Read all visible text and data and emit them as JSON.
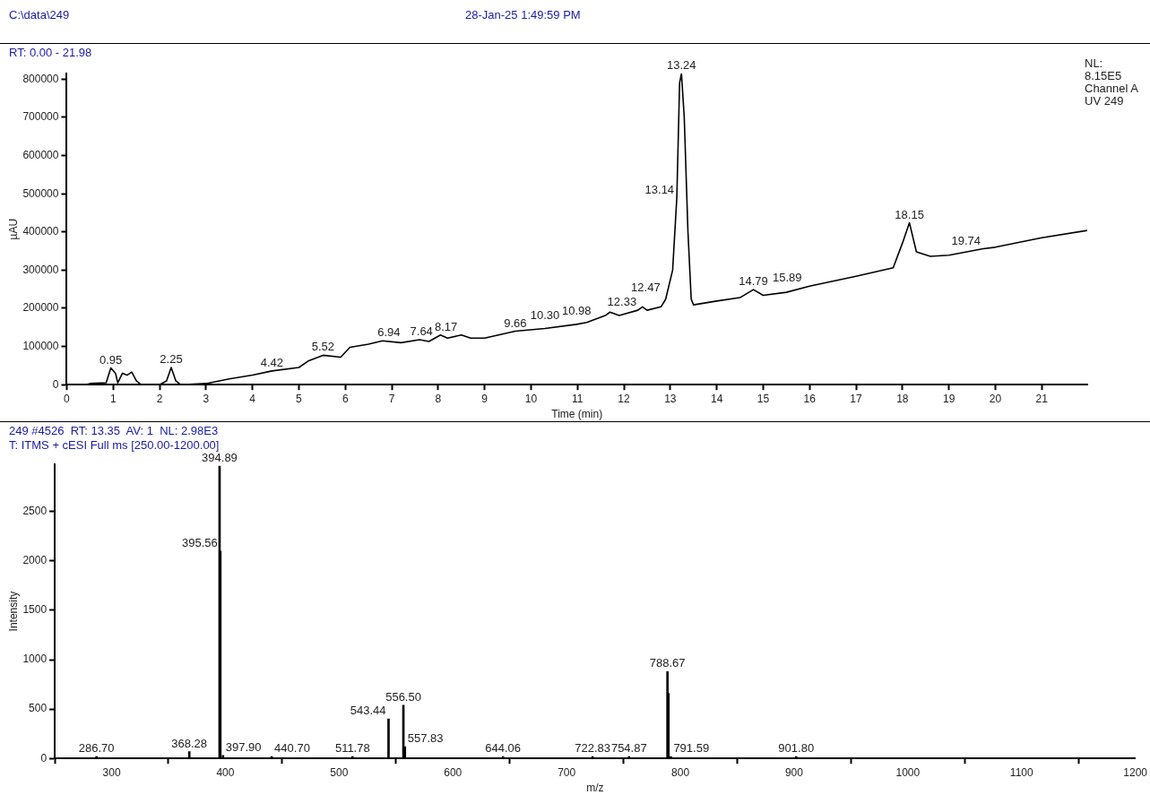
{
  "chart_data": [
    {
      "type": "line",
      "title": "RT: 0.00 - 21.98",
      "xlabel": "Time (min)",
      "ylabel": "µAU",
      "xlim": [
        0,
        21.98
      ],
      "xticks": [
        0,
        1,
        2,
        3,
        4,
        5,
        6,
        7,
        8,
        9,
        10,
        11,
        12,
        13,
        14,
        15,
        16,
        17,
        18,
        19,
        20,
        21
      ],
      "ylim": [
        0,
        815000
      ],
      "yticks": [
        0,
        100000,
        200000,
        300000,
        400000,
        500000,
        600000,
        700000,
        800000
      ],
      "legend": false,
      "marker": "none",
      "line_style": "solid",
      "series": [
        {
          "color": "#000000",
          "x": [
            0,
            0.4,
            0.5,
            0.85,
            0.95,
            1.05,
            1.1,
            1.2,
            1.3,
            1.4,
            1.5,
            1.6,
            2.0,
            2.15,
            2.25,
            2.35,
            2.45,
            3.0,
            3.5,
            4.0,
            4.42,
            5.0,
            5.2,
            5.52,
            5.9,
            6.1,
            6.5,
            6.8,
            7.2,
            7.6,
            7.8,
            8.05,
            8.2,
            8.5,
            8.7,
            9.0,
            9.66,
            10.3,
            10.98,
            11.2,
            11.6,
            11.7,
            11.9,
            12.3,
            12.4,
            12.5,
            12.8,
            12.9,
            13.05,
            13.14,
            13.2,
            13.24,
            13.3,
            13.38,
            13.45,
            13.5,
            14.0,
            14.5,
            14.79,
            15.0,
            15.5,
            16.0,
            17.0,
            17.8,
            18.0,
            18.15,
            18.3,
            18.6,
            19.0,
            19.74,
            20.0,
            21.0,
            21.98
          ],
          "values": [
            0,
            0,
            3000,
            5000,
            44000,
            30000,
            5000,
            30000,
            25000,
            33000,
            10000,
            0,
            0,
            10000,
            45000,
            10000,
            0,
            3000,
            15000,
            25000,
            36000,
            45000,
            62000,
            77000,
            72000,
            98000,
            106000,
            115000,
            110000,
            118000,
            113000,
            130000,
            122000,
            130000,
            122000,
            122000,
            140000,
            147000,
            158000,
            163000,
            181000,
            190000,
            181000,
            195000,
            204000,
            195000,
            204000,
            224000,
            300000,
            490000,
            790000,
            815000,
            700000,
            400000,
            224000,
            209000,
            219000,
            228000,
            249000,
            234000,
            242000,
            258000,
            284000,
            306000,
            371000,
            424000,
            348000,
            336000,
            339000,
            356000,
            360000,
            385000,
            404000
          ]
        }
      ],
      "annotations": [
        "C:\\data\\249",
        "28-Jan-25 1:49:59 PM",
        "NL:\n8.15E5\nChannel A\nUV 249",
        {
          "text": "0.95",
          "x": 0.95,
          "y": 44000
        },
        {
          "text": "2.25",
          "x": 2.25,
          "y": 45000
        },
        {
          "text": "4.42",
          "x": 4.42,
          "y": 36000
        },
        {
          "text": "5.52",
          "x": 5.52,
          "y": 77000
        },
        {
          "text": "6.94",
          "x": 6.94,
          "y": 115000
        },
        {
          "text": "7.64",
          "x": 7.64,
          "y": 118000
        },
        {
          "text": "8.17",
          "x": 8.17,
          "y": 130000
        },
        {
          "text": "9.66",
          "x": 9.66,
          "y": 140000
        },
        {
          "text": "10.30",
          "x": 10.3,
          "y": 147000
        },
        {
          "text": "10.98",
          "x": 10.98,
          "y": 158000
        },
        {
          "text": "12.33",
          "x": 12.33,
          "y": 195000
        },
        {
          "text": "12.47",
          "x": 12.47,
          "y": 204000
        },
        {
          "text": "13.14",
          "x": 13.14,
          "y": 490000
        },
        {
          "text": "13.24",
          "x": 13.24,
          "y": 815000
        },
        {
          "text": "14.79",
          "x": 14.79,
          "y": 249000
        },
        {
          "text": "15.89",
          "x": 15.89,
          "y": 258000
        },
        {
          "text": "18.15",
          "x": 18.15,
          "y": 424000
        },
        {
          "text": "19.74",
          "x": 19.74,
          "y": 356000
        }
      ]
    },
    {
      "type": "bar",
      "title": "249 #4526  RT: 13.35  AV: 1  NL: 2.98E3",
      "subtitle": "T: ITMS + cESI Full ms [250.00-1200.00]",
      "xlabel": "m/z",
      "ylabel": "Intensity",
      "xlim": [
        250,
        1200
      ],
      "xticks": [
        300,
        400,
        500,
        600,
        700,
        800,
        900,
        1000,
        1100,
        1200
      ],
      "ylim": [
        0,
        2980
      ],
      "yticks": [
        0,
        500,
        1000,
        1500,
        2000,
        2500
      ],
      "legend": false,
      "x": [
        286.7,
        368.28,
        394.89,
        395.56,
        397.9,
        440.7,
        511.78,
        543.44,
        556.5,
        557.83,
        644.06,
        722.83,
        754.87,
        788.67,
        789.5,
        791.59,
        901.8
      ],
      "series": [
        {
          "color": "#000000",
          "values": [
            20,
            70,
            2960,
            2100,
            30,
            20,
            20,
            400,
            540,
            120,
            20,
            20,
            20,
            880,
            660,
            20,
            20
          ]
        }
      ],
      "annotations": [
        {
          "text": "286.70",
          "x": 286.7,
          "y": 20
        },
        {
          "text": "368.28",
          "x": 368.28,
          "y": 70
        },
        {
          "text": "394.89",
          "x": 394.89,
          "y": 2960
        },
        {
          "text": "395.56",
          "x": 395.56,
          "y": 2100
        },
        {
          "text": "397.90",
          "x": 397.9,
          "y": 30
        },
        {
          "text": "440.70",
          "x": 440.7,
          "y": 20
        },
        {
          "text": "511.78",
          "x": 511.78,
          "y": 20
        },
        {
          "text": "543.44",
          "x": 543.44,
          "y": 400
        },
        {
          "text": "556.50",
          "x": 556.5,
          "y": 540
        },
        {
          "text": "557.83",
          "x": 557.83,
          "y": 120
        },
        {
          "text": "644.06",
          "x": 644.06,
          "y": 20
        },
        {
          "text": "722.83",
          "x": 722.83,
          "y": 20
        },
        {
          "text": "754.87",
          "x": 754.87,
          "y": 20
        },
        {
          "text": "788.67",
          "x": 788.67,
          "y": 880
        },
        {
          "text": "791.59",
          "x": 791.59,
          "y": 20
        },
        {
          "text": "901.80",
          "x": 901.8,
          "y": 20
        }
      ]
    }
  ]
}
